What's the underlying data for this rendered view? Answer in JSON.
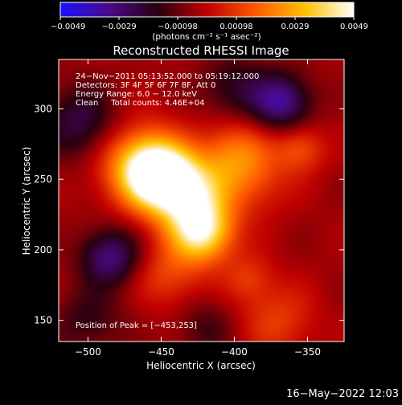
{
  "colorbar": {
    "ticks": [
      "-0.0049",
      "-0.0029",
      "-0.00098",
      "0.00098",
      "0.0029",
      "0.0049"
    ],
    "unit_label": "(photons cm⁻² s⁻¹ asec⁻²)",
    "colors": [
      "#1a10ff",
      "#4a0a8a",
      "#2a0010",
      "#c00000",
      "#ff5a00",
      "#ffc000",
      "#ffffff"
    ]
  },
  "chart_data": {
    "type": "heatmap",
    "title": "Reconstructed RHESSI Image",
    "xlabel": "Heliocentric X (arcsec)",
    "ylabel": "Heliocentric Y (arcsec)",
    "xlim": [
      -520,
      -325
    ],
    "ylim": [
      135,
      335
    ],
    "xticks": [
      -500,
      -450,
      -400,
      -350
    ],
    "yticks": [
      150,
      200,
      250,
      300
    ],
    "xtick_labels": [
      "−500",
      "−450",
      "−400",
      "−350"
    ],
    "ytick_labels": [
      "150",
      "200",
      "250",
      "300"
    ],
    "value_range": [
      -0.0049,
      0.0049
    ],
    "peak": [
      -453,
      253
    ],
    "sources": [
      {
        "x": -453,
        "y": 253,
        "amp": 1.0,
        "sigma": 16
      },
      {
        "x": -432,
        "y": 240,
        "amp": 0.9,
        "sigma": 18
      },
      {
        "x": -422,
        "y": 212,
        "amp": 0.9,
        "sigma": 15
      },
      {
        "x": -465,
        "y": 262,
        "amp": 0.55,
        "sigma": 20
      },
      {
        "x": -400,
        "y": 270,
        "amp": 0.4,
        "sigma": 16
      },
      {
        "x": -388,
        "y": 250,
        "amp": 0.3,
        "sigma": 18
      },
      {
        "x": -355,
        "y": 272,
        "amp": 0.35,
        "sigma": 12
      },
      {
        "x": -445,
        "y": 182,
        "amp": 0.3,
        "sigma": 16
      },
      {
        "x": -390,
        "y": 180,
        "amp": 0.25,
        "sigma": 12
      },
      {
        "x": -370,
        "y": 150,
        "amp": 0.28,
        "sigma": 18
      },
      {
        "x": -368,
        "y": 305,
        "amp": -0.6,
        "sigma": 14
      },
      {
        "x": -485,
        "y": 195,
        "amp": -0.55,
        "sigma": 14
      },
      {
        "x": -505,
        "y": 290,
        "amp": -0.4,
        "sigma": 18
      },
      {
        "x": -400,
        "y": 315,
        "amp": -0.3,
        "sigma": 16
      },
      {
        "x": -500,
        "y": 150,
        "amp": -0.25,
        "sigma": 16
      },
      {
        "x": -420,
        "y": 145,
        "amp": -0.2,
        "sigma": 14
      }
    ],
    "annotations": [
      "24−Nov−2011 05:13:52.000 to 05:19:12.000",
      "Detectors: 3F 4F 5F 6F 7F 8F, Att 0",
      "Energy Range: 6.0 − 12.0 keV",
      "Clean     Total counts: 4.46E+04"
    ],
    "peak_label": "Position of Peak = [−453,253]"
  },
  "footer": {
    "timestamp": "16−May−2022 12:03"
  }
}
